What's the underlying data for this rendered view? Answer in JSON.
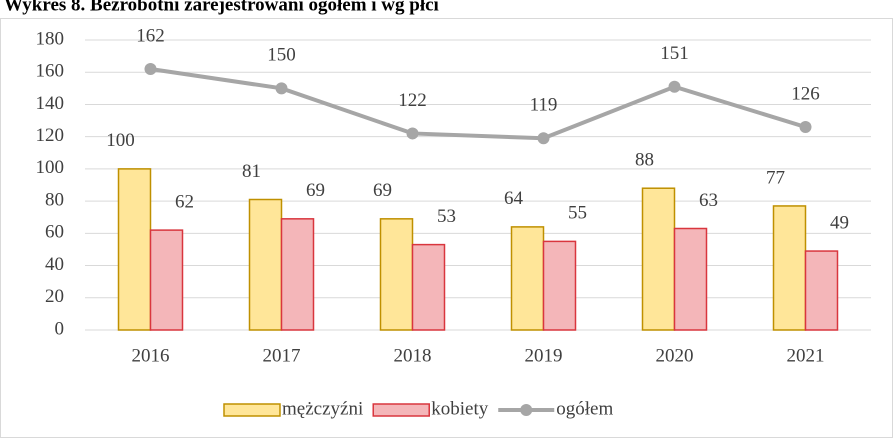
{
  "chart_data": {
    "type": "bar",
    "title": "Wykres 8. Bezrobotni zarejestrowani ogółem i wg płci",
    "categories": [
      "2016",
      "2017",
      "2018",
      "2019",
      "2020",
      "2021"
    ],
    "series": [
      {
        "name": "mężczyźni",
        "type": "bar",
        "color": "#ffe699",
        "stroke": "#bf9000",
        "values": [
          100,
          81,
          69,
          64,
          88,
          77
        ]
      },
      {
        "name": "kobiety",
        "type": "bar",
        "color": "#f4b6b9",
        "stroke": "#d9363e",
        "values": [
          62,
          69,
          53,
          55,
          63,
          49
        ]
      },
      {
        "name": "ogółem",
        "type": "line",
        "color": "#a6a6a6",
        "values": [
          162,
          150,
          122,
          119,
          151,
          126
        ]
      }
    ],
    "ylim": [
      0,
      180
    ],
    "yticks": [
      0,
      20,
      40,
      60,
      80,
      100,
      120,
      140,
      160,
      180
    ],
    "grid": true,
    "legend": "bottom"
  }
}
